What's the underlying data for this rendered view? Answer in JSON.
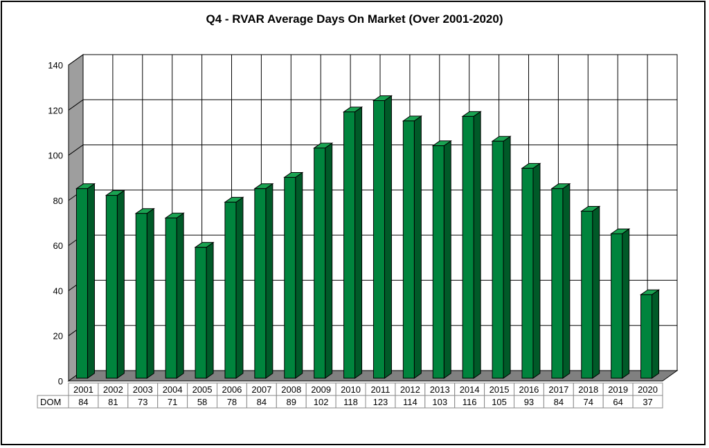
{
  "chart_data": {
    "type": "bar",
    "title": "Q4 - RVAR Average Days On Market (Over 2001-2020)",
    "categories": [
      "2001",
      "2002",
      "2003",
      "2004",
      "2005",
      "2006",
      "2007",
      "2008",
      "2009",
      "2010",
      "2011",
      "2012",
      "2013",
      "2014",
      "2015",
      "2016",
      "2017",
      "2018",
      "2019",
      "2020"
    ],
    "series": [
      {
        "name": "DOM",
        "values": [
          84,
          81,
          73,
          71,
          58,
          78,
          84,
          89,
          102,
          118,
          123,
          114,
          103,
          116,
          105,
          93,
          84,
          74,
          64,
          37
        ]
      }
    ],
    "ylim": [
      0,
      140
    ],
    "yticks": [
      0,
      20,
      40,
      60,
      80,
      100,
      120,
      140
    ],
    "grid": true,
    "data_table": true,
    "bar_color": "#00843d",
    "bar_side_color": "#005a28",
    "bar_top_color": "#1aa352",
    "wall_color": "#9e9e9e",
    "floor_color": "#808080"
  }
}
